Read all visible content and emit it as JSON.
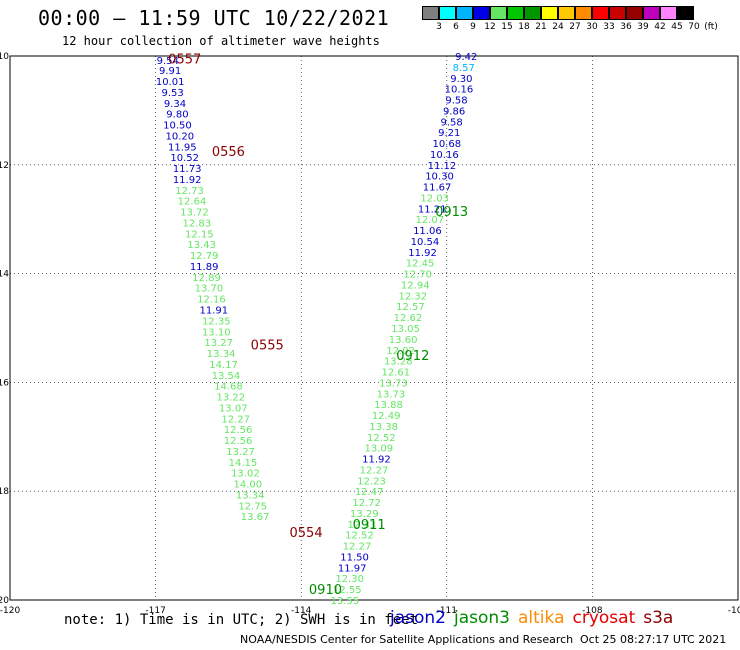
{
  "header": {
    "title": "00:00 – 11:59 UTC 10/22/2021",
    "subtitle": "12 hour collection of altimeter wave heights"
  },
  "colorbar": {
    "colors": [
      "#7f7f7f",
      "#00ffff",
      "#00b4ff",
      "#0000e6",
      "#64e664",
      "#00c800",
      "#009600",
      "#ffff00",
      "#ffc800",
      "#ff8c00",
      "#ff0000",
      "#c80000",
      "#960000",
      "#be00be",
      "#ff82ff",
      "#000000"
    ],
    "labels": [
      "3",
      "6",
      "9",
      "12",
      "15",
      "18",
      "21",
      "24",
      "27",
      "30",
      "33",
      "36",
      "39",
      "42",
      "45",
      "70",
      "(ft)"
    ]
  },
  "footer": {
    "note": "note: 1) Time is in UTC; 2) SWH is in feet",
    "credit": "NOAA/NESDIS Center for Satellite Applications and Research",
    "timestamp": "Oct 25 08:27:17 UTC 2021"
  },
  "satellites": [
    {
      "name": "jason2",
      "color": "#0000c8"
    },
    {
      "name": "jason3",
      "color": "#008c00"
    },
    {
      "name": "altika",
      "color": "#ff8c00"
    },
    {
      "name": "cryosat",
      "color": "#e60000"
    },
    {
      "name": "s3a",
      "color": "#8b0000"
    }
  ],
  "chart_data": {
    "type": "scatter",
    "xlim": [
      -120,
      -105
    ],
    "ylim": [
      -20,
      -10
    ],
    "xticks": [
      "-120",
      "-117",
      "-114",
      "-111",
      "-108",
      "-105"
    ],
    "yticks": [
      "-10",
      "-12",
      "-14",
      "-16",
      "-18",
      "-20"
    ],
    "series": [
      {
        "satellite": "s3a",
        "color": "#8b0000",
        "labels": [
          {
            "x": -116.4,
            "y": -10.05,
            "label": "0557"
          },
          {
            "x": -115.5,
            "y": -11.75,
            "label": "0556"
          },
          {
            "x": -114.7,
            "y": -15.3,
            "label": "0555"
          },
          {
            "x": -113.9,
            "y": -18.75,
            "label": "0554"
          }
        ]
      },
      {
        "satellite": "jason3",
        "color": "#008c00",
        "labels": [
          {
            "x": -110.9,
            "y": -12.85,
            "label": "0913"
          },
          {
            "x": -111.7,
            "y": -15.5,
            "label": "0912"
          },
          {
            "x": -112.6,
            "y": -18.6,
            "label": "0911"
          },
          {
            "x": -113.5,
            "y": -19.8,
            "label": "0910"
          }
        ]
      }
    ],
    "points_s3a": [
      {
        "x": -116.75,
        "y": -10.07,
        "v": "9.54",
        "c": "#0000c8"
      },
      {
        "x": -116.7,
        "y": -10.26,
        "v": "9.91",
        "c": "#0000c8"
      },
      {
        "x": -116.7,
        "y": -10.46,
        "v": "10.01",
        "c": "#0000c8"
      },
      {
        "x": -116.65,
        "y": -10.66,
        "v": "9.53",
        "c": "#0000c8"
      },
      {
        "x": -116.6,
        "y": -10.86,
        "v": "9.34",
        "c": "#0000c8"
      },
      {
        "x": -116.55,
        "y": -11.06,
        "v": "9.80",
        "c": "#0000c8"
      },
      {
        "x": -116.55,
        "y": -11.26,
        "v": "10.50",
        "c": "#0000c8"
      },
      {
        "x": -116.5,
        "y": -11.46,
        "v": "10.20",
        "c": "#0000c8"
      },
      {
        "x": -116.45,
        "y": -11.66,
        "v": "11.95",
        "c": "#0000c8"
      },
      {
        "x": -116.4,
        "y": -11.86,
        "v": "10.52",
        "c": "#0000c8"
      },
      {
        "x": -116.35,
        "y": -12.06,
        "v": "11.73",
        "c": "#0000c8"
      },
      {
        "x": -116.35,
        "y": -12.26,
        "v": "11.92",
        "c": "#0000c8"
      },
      {
        "x": -116.3,
        "y": -12.46,
        "v": "12.73",
        "c": "#64e664"
      },
      {
        "x": -116.25,
        "y": -12.66,
        "v": "12.64",
        "c": "#64e664"
      },
      {
        "x": -116.2,
        "y": -12.86,
        "v": "13.72",
        "c": "#64e664"
      },
      {
        "x": -116.15,
        "y": -13.06,
        "v": "12.83",
        "c": "#64e664"
      },
      {
        "x": -116.1,
        "y": -13.26,
        "v": "12.15",
        "c": "#64e664"
      },
      {
        "x": -116.05,
        "y": -13.46,
        "v": "13.43",
        "c": "#64e664"
      },
      {
        "x": -116.0,
        "y": -13.66,
        "v": "12.79",
        "c": "#64e664"
      },
      {
        "x": -116.0,
        "y": -13.86,
        "v": "11.89",
        "c": "#0000c8"
      },
      {
        "x": -115.95,
        "y": -14.06,
        "v": "12.89",
        "c": "#64e664"
      },
      {
        "x": -115.9,
        "y": -14.26,
        "v": "13.70",
        "c": "#64e664"
      },
      {
        "x": -115.85,
        "y": -14.46,
        "v": "12.16",
        "c": "#64e664"
      },
      {
        "x": -115.8,
        "y": -14.66,
        "v": "11.91",
        "c": "#0000c8"
      },
      {
        "x": -115.75,
        "y": -14.86,
        "v": "12.35",
        "c": "#64e664"
      },
      {
        "x": -115.75,
        "y": -15.06,
        "v": "13.10",
        "c": "#64e664"
      },
      {
        "x": -115.7,
        "y": -15.26,
        "v": "13.27",
        "c": "#64e664"
      },
      {
        "x": -115.65,
        "y": -15.46,
        "v": "13.34",
        "c": "#64e664"
      },
      {
        "x": -115.6,
        "y": -15.66,
        "v": "14.17",
        "c": "#64e664"
      },
      {
        "x": -115.55,
        "y": -15.86,
        "v": "13.54",
        "c": "#64e664"
      },
      {
        "x": -115.5,
        "y": -16.06,
        "v": "14.68",
        "c": "#64e664"
      },
      {
        "x": -115.45,
        "y": -16.26,
        "v": "13.22",
        "c": "#64e664"
      },
      {
        "x": -115.4,
        "y": -16.46,
        "v": "13.07",
        "c": "#64e664"
      },
      {
        "x": -115.35,
        "y": -16.66,
        "v": "12.27",
        "c": "#64e664"
      },
      {
        "x": -115.3,
        "y": -16.86,
        "v": "12.56",
        "c": "#64e664"
      },
      {
        "x": -115.3,
        "y": -17.06,
        "v": "12.56",
        "c": "#64e664"
      },
      {
        "x": -115.25,
        "y": -17.26,
        "v": "13.27",
        "c": "#64e664"
      },
      {
        "x": -115.2,
        "y": -17.46,
        "v": "14.15",
        "c": "#64e664"
      },
      {
        "x": -115.15,
        "y": -17.66,
        "v": "13.02",
        "c": "#64e664"
      },
      {
        "x": -115.1,
        "y": -17.86,
        "v": "14.00",
        "c": "#64e664"
      },
      {
        "x": -115.05,
        "y": -18.06,
        "v": "13.34",
        "c": "#64e664"
      },
      {
        "x": -115.0,
        "y": -18.26,
        "v": "12.75",
        "c": "#64e664"
      },
      {
        "x": -114.95,
        "y": -18.46,
        "v": "13.67",
        "c": "#64e664"
      }
    ],
    "points_jason3": [
      {
        "x": -110.6,
        "y": -10.0,
        "v": "9.42",
        "c": "#0000c8"
      },
      {
        "x": -110.65,
        "y": -10.2,
        "v": "8.57",
        "c": "#00b4ff"
      },
      {
        "x": -110.7,
        "y": -10.4,
        "v": "9.30",
        "c": "#0000c8"
      },
      {
        "x": -110.75,
        "y": -10.6,
        "v": "10.16",
        "c": "#0000c8"
      },
      {
        "x": -110.8,
        "y": -10.8,
        "v": "9.58",
        "c": "#0000c8"
      },
      {
        "x": -110.85,
        "y": -11.0,
        "v": "9.86",
        "c": "#0000c8"
      },
      {
        "x": -110.9,
        "y": -11.2,
        "v": "9.58",
        "c": "#0000c8"
      },
      {
        "x": -110.95,
        "y": -11.4,
        "v": "9.21",
        "c": "#0000c8"
      },
      {
        "x": -111.0,
        "y": -11.6,
        "v": "10.68",
        "c": "#0000c8"
      },
      {
        "x": -111.05,
        "y": -11.8,
        "v": "10.16",
        "c": "#0000c8"
      },
      {
        "x": -111.1,
        "y": -12.0,
        "v": "11.12",
        "c": "#0000c8"
      },
      {
        "x": -111.15,
        "y": -12.2,
        "v": "10.30",
        "c": "#0000c8"
      },
      {
        "x": -111.2,
        "y": -12.4,
        "v": "11.67",
        "c": "#0000c8"
      },
      {
        "x": -111.25,
        "y": -12.6,
        "v": "12.03",
        "c": "#64e664"
      },
      {
        "x": -111.3,
        "y": -12.8,
        "v": "11.21",
        "c": "#0000c8"
      },
      {
        "x": -111.35,
        "y": -13.0,
        "v": "12.07",
        "c": "#64e664"
      },
      {
        "x": -111.4,
        "y": -13.2,
        "v": "11.06",
        "c": "#0000c8"
      },
      {
        "x": -111.45,
        "y": -13.4,
        "v": "10.54",
        "c": "#0000c8"
      },
      {
        "x": -111.5,
        "y": -13.6,
        "v": "11.92",
        "c": "#0000c8"
      },
      {
        "x": -111.55,
        "y": -13.8,
        "v": "12.45",
        "c": "#64e664"
      },
      {
        "x": -111.6,
        "y": -14.0,
        "v": "12.70",
        "c": "#64e664"
      },
      {
        "x": -111.65,
        "y": -14.2,
        "v": "12.94",
        "c": "#64e664"
      },
      {
        "x": -111.7,
        "y": -14.4,
        "v": "12.32",
        "c": "#64e664"
      },
      {
        "x": -111.75,
        "y": -14.6,
        "v": "12.57",
        "c": "#64e664"
      },
      {
        "x": -111.8,
        "y": -14.8,
        "v": "12.62",
        "c": "#64e664"
      },
      {
        "x": -111.85,
        "y": -15.0,
        "v": "13.05",
        "c": "#64e664"
      },
      {
        "x": -111.9,
        "y": -15.2,
        "v": "13.60",
        "c": "#64e664"
      },
      {
        "x": -111.95,
        "y": -15.4,
        "v": "12.02",
        "c": "#64e664"
      },
      {
        "x": -112.0,
        "y": -15.6,
        "v": "13.28",
        "c": "#64e664"
      },
      {
        "x": -112.05,
        "y": -15.8,
        "v": "12.61",
        "c": "#64e664"
      },
      {
        "x": -112.1,
        "y": -16.0,
        "v": "13.73",
        "c": "#64e664"
      },
      {
        "x": -112.15,
        "y": -16.2,
        "v": "13.73",
        "c": "#64e664"
      },
      {
        "x": -112.2,
        "y": -16.4,
        "v": "13.88",
        "c": "#64e664"
      },
      {
        "x": -112.25,
        "y": -16.6,
        "v": "12.49",
        "c": "#64e664"
      },
      {
        "x": -112.3,
        "y": -16.8,
        "v": "13.38",
        "c": "#64e664"
      },
      {
        "x": -112.35,
        "y": -17.0,
        "v": "12.52",
        "c": "#64e664"
      },
      {
        "x": -112.4,
        "y": -17.2,
        "v": "13.09",
        "c": "#64e664"
      },
      {
        "x": -112.45,
        "y": -17.4,
        "v": "11.92",
        "c": "#0000c8"
      },
      {
        "x": -112.5,
        "y": -17.6,
        "v": "12.27",
        "c": "#64e664"
      },
      {
        "x": -112.55,
        "y": -17.8,
        "v": "12.23",
        "c": "#64e664"
      },
      {
        "x": -112.6,
        "y": -18.0,
        "v": "12.47",
        "c": "#64e664"
      },
      {
        "x": -112.65,
        "y": -18.2,
        "v": "12.72",
        "c": "#64e664"
      },
      {
        "x": -112.7,
        "y": -18.4,
        "v": "13.29",
        "c": "#64e664"
      },
      {
        "x": -112.75,
        "y": -18.6,
        "v": "12.33",
        "c": "#64e664"
      },
      {
        "x": -112.8,
        "y": -18.8,
        "v": "12.52",
        "c": "#64e664"
      },
      {
        "x": -112.85,
        "y": -19.0,
        "v": "12.27",
        "c": "#64e664"
      },
      {
        "x": -112.9,
        "y": -19.2,
        "v": "11.50",
        "c": "#0000c8"
      },
      {
        "x": -112.95,
        "y": -19.4,
        "v": "11.97",
        "c": "#0000c8"
      },
      {
        "x": -113.0,
        "y": -19.6,
        "v": "12.30",
        "c": "#64e664"
      },
      {
        "x": -113.05,
        "y": -19.8,
        "v": "12.55",
        "c": "#64e664"
      },
      {
        "x": -113.1,
        "y": -20.0,
        "v": "13.55",
        "c": "#64e664"
      }
    ]
  }
}
